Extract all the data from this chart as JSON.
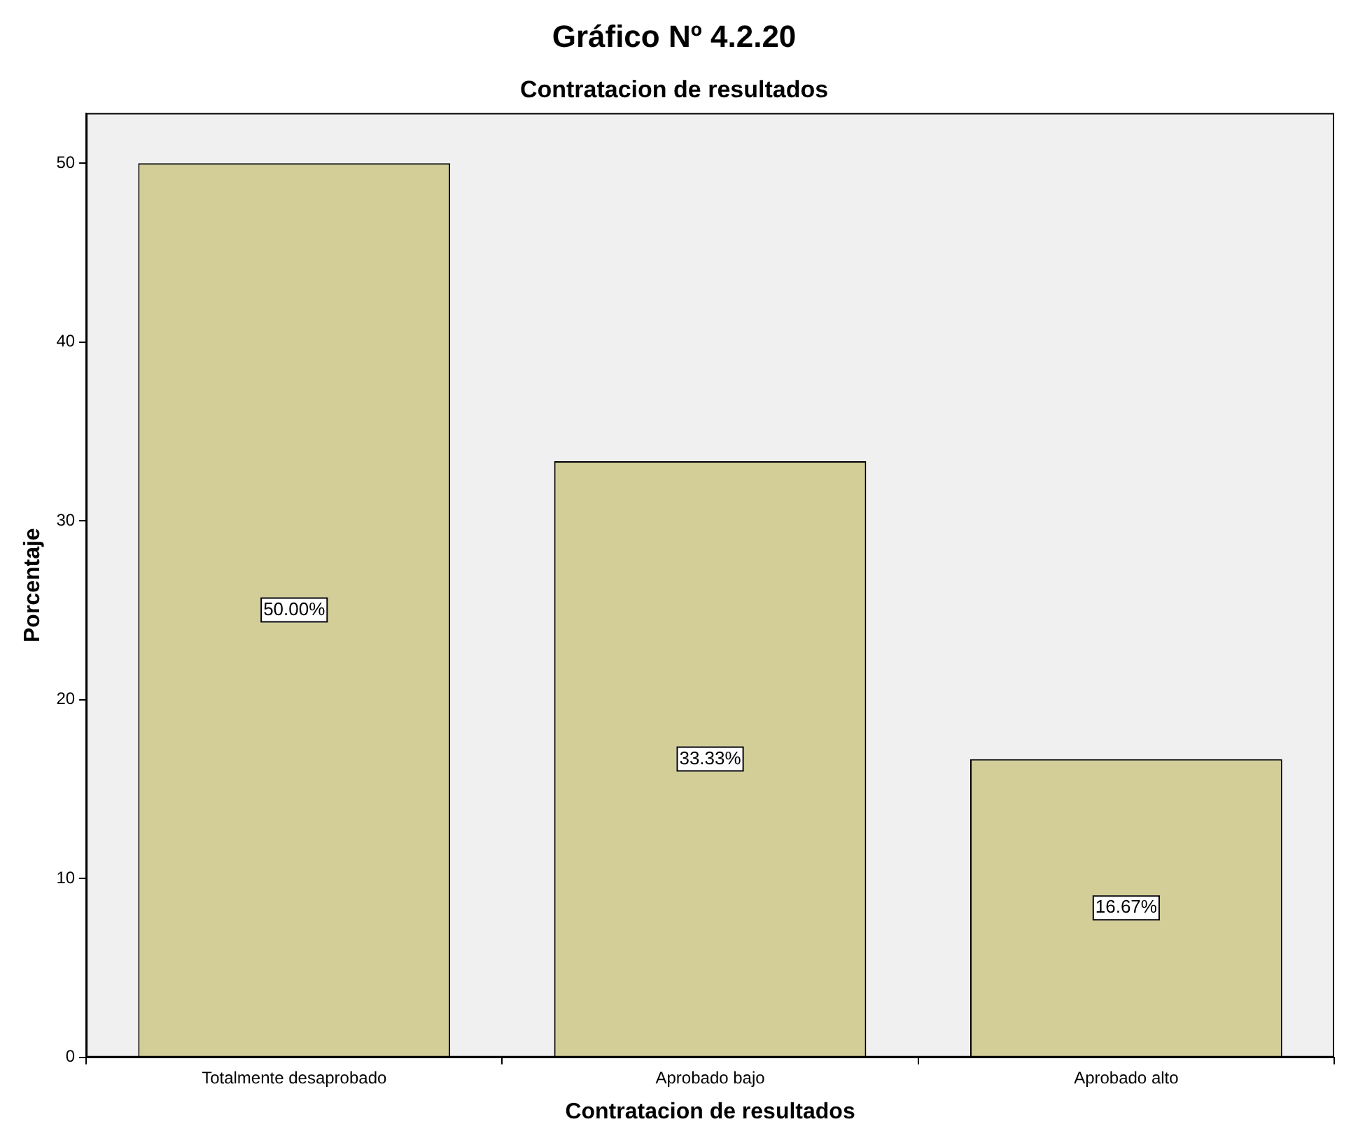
{
  "chart_data": {
    "type": "bar",
    "title": "Gráfico Nº 4.2.20",
    "subtitle": "Contratacion de resultados",
    "xlabel": "Contratacion de resultados",
    "ylabel": "Porcentaje",
    "categories": [
      "Totalmente desaprobado",
      "Aprobado bajo",
      "Aprobado alto"
    ],
    "values": [
      50,
      33.33,
      16.67
    ],
    "value_labels": [
      "50.00%",
      "33.33%",
      "16.67%"
    ],
    "color": "#d3ce97",
    "ylim": [
      0,
      52.8
    ],
    "yticks": [
      0,
      10,
      20,
      30,
      40,
      50
    ],
    "grid": false,
    "legend": false
  }
}
